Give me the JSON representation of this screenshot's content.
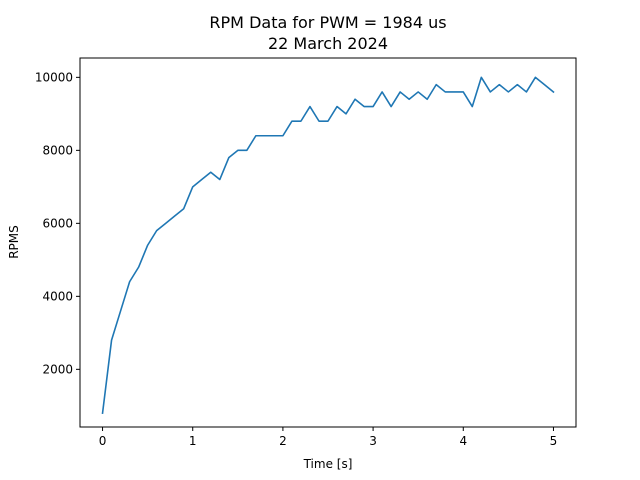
{
  "chart_data": {
    "type": "line",
    "title": "RPM Data for PWM = 1984 us",
    "subtitle": "22 March 2024",
    "xlabel": "Time [s]",
    "ylabel": "RPMS",
    "xlim": [
      -0.25,
      5.25
    ],
    "ylim": [
      420,
      10530
    ],
    "xticks": [
      0,
      1,
      2,
      3,
      4,
      5
    ],
    "yticks": [
      2000,
      4000,
      6000,
      8000,
      10000
    ],
    "xtick_labels": [
      "0",
      "1",
      "2",
      "3",
      "4",
      "5"
    ],
    "ytick_labels": [
      "2000",
      "4000",
      "6000",
      "8000",
      "10000"
    ],
    "grid": false,
    "series": [
      {
        "color": "#1f77b4",
        "x": [
          0.0,
          0.1,
          0.2,
          0.3,
          0.4,
          0.5,
          0.6,
          0.7,
          0.8,
          0.9,
          1.0,
          1.1,
          1.2,
          1.3,
          1.4,
          1.5,
          1.6,
          1.7,
          1.8,
          1.9,
          2.0,
          2.1,
          2.2,
          2.3,
          2.4,
          2.5,
          2.6,
          2.7,
          2.8,
          2.9,
          3.0,
          3.1,
          3.2,
          3.3,
          3.4,
          3.5,
          3.6,
          3.7,
          3.8,
          3.9,
          4.0,
          4.1,
          4.2,
          4.3,
          4.4,
          4.5,
          4.6,
          4.7,
          4.8,
          4.9,
          5.0
        ],
        "y": [
          800,
          2800,
          3600,
          4400,
          4800,
          5400,
          5800,
          6000,
          6200,
          6400,
          7000,
          7200,
          7400,
          7200,
          7800,
          8000,
          8000,
          8400,
          8400,
          8400,
          8400,
          8800,
          8800,
          9200,
          8800,
          8800,
          9200,
          9000,
          9400,
          9200,
          9200,
          9600,
          9200,
          9600,
          9400,
          9600,
          9400,
          9800,
          9600,
          9600,
          9600,
          9200,
          10000,
          9600,
          9800,
          9600,
          9800,
          9600,
          10000,
          9800,
          9600
        ]
      }
    ]
  }
}
